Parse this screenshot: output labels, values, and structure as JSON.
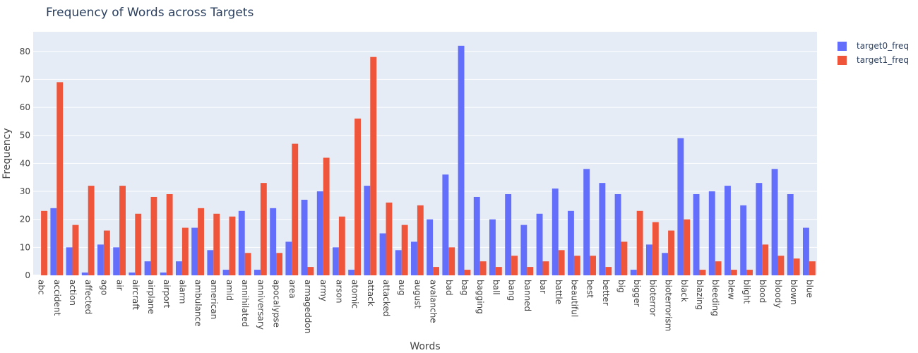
{
  "chart_data": {
    "type": "bar",
    "title": "Frequency of Words across Targets",
    "xlabel": "Words",
    "ylabel": "Frequency",
    "ylim": [
      0,
      87
    ],
    "yticks": [
      0,
      10,
      20,
      30,
      40,
      50,
      60,
      70,
      80
    ],
    "grid": true,
    "legend_position": "top-right",
    "categories": [
      "abc",
      "accident",
      "action",
      "affected",
      "ago",
      "air",
      "aircraft",
      "airplane",
      "airport",
      "alarm",
      "ambulance",
      "american",
      "amid",
      "annihilated",
      "anniversary",
      "apocalypse",
      "area",
      "armageddon",
      "army",
      "arson",
      "atomic",
      "attack",
      "attacked",
      "aug",
      "august",
      "avalanche",
      "bad",
      "bag",
      "bagging",
      "ball",
      "bang",
      "banned",
      "bar",
      "battle",
      "beautiful",
      "best",
      "better",
      "big",
      "bigger",
      "bioterror",
      "bioterrorism",
      "black",
      "blazing",
      "bleeding",
      "blew",
      "blight",
      "blood",
      "bloody",
      "blown",
      "blue"
    ],
    "series": [
      {
        "name": "target0_freq",
        "color": "#636efa",
        "values": [
          0,
          24,
          10,
          1,
          11,
          10,
          1,
          5,
          1,
          5,
          17,
          9,
          2,
          23,
          2,
          24,
          12,
          27,
          30,
          10,
          2,
          32,
          15,
          9,
          12,
          20,
          36,
          82,
          28,
          20,
          29,
          18,
          22,
          31,
          23,
          38,
          33,
          29,
          2,
          11,
          8,
          49,
          29,
          30,
          32,
          25,
          33,
          38,
          29,
          17
        ]
      },
      {
        "name": "target1_freq",
        "color": "#ef553b",
        "values": [
          23,
          69,
          18,
          32,
          16,
          32,
          22,
          28,
          29,
          17,
          24,
          22,
          21,
          8,
          33,
          8,
          47,
          3,
          42,
          21,
          56,
          78,
          26,
          18,
          25,
          3,
          10,
          2,
          5,
          3,
          7,
          3,
          5,
          9,
          7,
          7,
          3,
          12,
          23,
          19,
          16,
          20,
          2,
          5,
          2,
          2,
          11,
          7,
          6,
          5
        ]
      }
    ]
  }
}
